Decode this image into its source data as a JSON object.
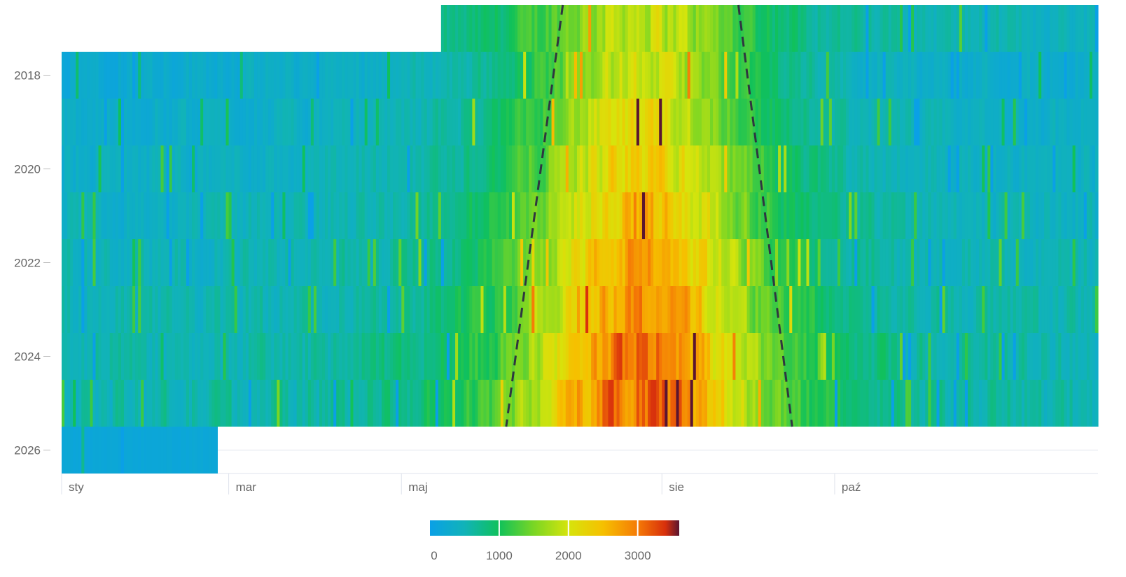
{
  "chart_data": {
    "type": "heatmap",
    "x_range": [
      1,
      366
    ],
    "y_range": [
      2017,
      2026
    ],
    "x_ticks": [
      {
        "label": "sty",
        "day": 1
      },
      {
        "label": "mar",
        "day": 60
      },
      {
        "label": "maj",
        "day": 121
      },
      {
        "label": "sie",
        "day": 213
      },
      {
        "label": "paź",
        "day": 274
      }
    ],
    "y_ticks": [
      2018,
      2020,
      2022,
      2024,
      2026
    ],
    "rows": [
      {
        "year": 2017,
        "start_day": 135,
        "end_day": 366,
        "base": 450,
        "noise": 250
      },
      {
        "year": 2018,
        "start_day": 1,
        "end_day": 366,
        "base": 300,
        "noise": 220
      },
      {
        "year": 2019,
        "start_day": 1,
        "end_day": 366,
        "base": 330,
        "noise": 220
      },
      {
        "year": 2020,
        "start_day": 1,
        "end_day": 366,
        "base": 380,
        "noise": 250
      },
      {
        "year": 2021,
        "start_day": 1,
        "end_day": 366,
        "base": 430,
        "noise": 260
      },
      {
        "year": 2022,
        "start_day": 1,
        "end_day": 366,
        "base": 460,
        "noise": 270
      },
      {
        "year": 2023,
        "start_day": 1,
        "end_day": 366,
        "base": 490,
        "noise": 280
      },
      {
        "year": 2024,
        "start_day": 1,
        "end_day": 366,
        "base": 520,
        "noise": 300
      },
      {
        "year": 2025,
        "start_day": 1,
        "end_day": 366,
        "base": 540,
        "noise": 320
      },
      {
        "year": 2026,
        "start_day": 1,
        "end_day": 55,
        "base": 150,
        "noise": 60
      }
    ],
    "season_peak": {
      "center_day": 205,
      "width_days": 38,
      "amplitude_start": 1100,
      "amplitude_growth": 110
    },
    "trend_lines": [
      {
        "name": "start",
        "points": [
          [
            178,
            2016.5
          ],
          [
            158,
            2025.5
          ]
        ]
      },
      {
        "name": "end",
        "points": [
          [
            240,
            2016.5
          ],
          [
            259,
            2025.5
          ]
        ]
      }
    ],
    "colorbar": {
      "min": 0,
      "max": 3600,
      "ticks": [
        0,
        1000,
        2000,
        3000
      ],
      "stops": [
        {
          "value": 0,
          "color": "#0aa0e6"
        },
        {
          "value": 500,
          "color": "#11b3b8"
        },
        {
          "value": 1000,
          "color": "#10c15a"
        },
        {
          "value": 1500,
          "color": "#7ad624"
        },
        {
          "value": 2000,
          "color": "#d6e40c"
        },
        {
          "value": 2500,
          "color": "#f6c000"
        },
        {
          "value": 3000,
          "color": "#f57a06"
        },
        {
          "value": 3400,
          "color": "#d8300c"
        },
        {
          "value": 3600,
          "color": "#5a1530"
        }
      ]
    },
    "title": "",
    "xlabel": "",
    "ylabel": ""
  },
  "colors": {
    "background": "#ffffff",
    "grid": "#dfe3ec",
    "tick_text": "#666666",
    "trend_line": "#2f3640"
  }
}
